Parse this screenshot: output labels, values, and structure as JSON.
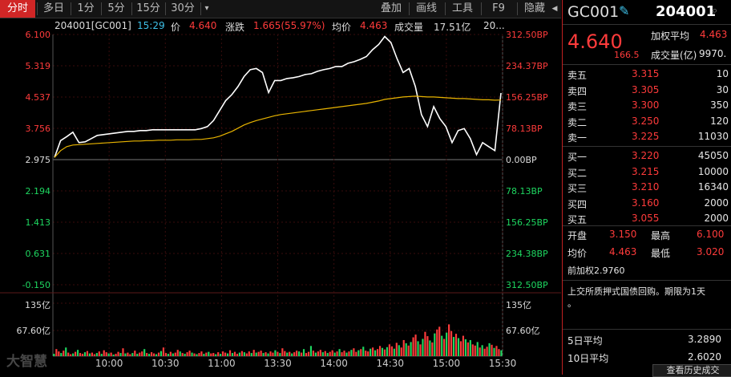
{
  "toolbar": {
    "tabs": [
      "分时",
      "多日",
      "1分",
      "5分",
      "15分",
      "30分"
    ],
    "more_glyph": "▾",
    "right_buttons": [
      "叠加",
      "画线",
      "工具",
      "F9",
      "隐藏"
    ]
  },
  "infobar": {
    "code": "204001[GC001]",
    "time": "15:29",
    "price_label": "价",
    "price": "4.640",
    "change_label": "涨跌",
    "change": "1.665(55.97%)",
    "avg_label": "均价",
    "avg": "4.463",
    "turnover_label": "成交量",
    "turnover": "17.51亿",
    "trailing": "20..."
  },
  "watermark": "大智慧",
  "chart_data": {
    "type": "line",
    "x_ticks": [
      "10:00",
      "10:30",
      "11:00",
      "13:30",
      "14:00",
      "14:30",
      "15:00",
      "15:30"
    ],
    "price_axis_left": [
      "6.100",
      "5.319",
      "4.537",
      "3.756",
      "2.975",
      "2.194",
      "1.413",
      "0.631",
      "-0.150"
    ],
    "price_axis_right": [
      "312.50BP",
      "234.37BP",
      "156.25BP",
      "78.13BP",
      "0.00BP",
      "78.13BP",
      "156.25BP",
      "234.38BP",
      "312.50BP"
    ],
    "volume_axis_left": [
      "135亿",
      "67.60亿"
    ],
    "volume_axis_right": [
      "135亿",
      "67.60亿"
    ],
    "prev_close": 2.976,
    "ylim": [
      -0.15,
      6.1
    ],
    "series": [
      {
        "values": [
          3.03,
          3.45,
          3.55,
          3.66,
          3.4,
          3.42,
          3.5,
          3.58,
          3.6,
          3.62,
          3.64,
          3.66,
          3.68,
          3.68,
          3.7,
          3.7,
          3.72,
          3.72,
          3.72,
          3.72,
          3.72,
          3.72,
          3.72,
          3.72,
          3.75,
          3.8,
          3.95,
          4.2,
          4.45,
          4.6,
          4.8,
          5.05,
          5.22,
          5.25,
          5.15,
          4.65,
          4.95,
          4.95,
          5.0,
          5.02,
          5.05,
          5.1,
          5.12,
          5.18,
          5.22,
          5.25,
          5.3,
          5.3,
          5.38,
          5.42,
          5.48,
          5.55,
          5.72,
          5.85,
          6.05,
          5.9,
          5.5,
          5.15,
          5.25,
          4.8,
          4.1,
          3.8,
          4.3,
          4.0,
          3.8,
          3.4,
          3.7,
          3.75,
          3.5,
          3.1,
          3.4,
          3.3,
          3.2,
          4.64
        ]
      },
      {
        "values": [
          3.03,
          3.2,
          3.3,
          3.34,
          3.35,
          3.36,
          3.37,
          3.38,
          3.39,
          3.4,
          3.41,
          3.42,
          3.43,
          3.44,
          3.44,
          3.45,
          3.45,
          3.46,
          3.46,
          3.46,
          3.47,
          3.47,
          3.47,
          3.48,
          3.48,
          3.5,
          3.52,
          3.56,
          3.62,
          3.68,
          3.76,
          3.84,
          3.9,
          3.95,
          3.99,
          4.03,
          4.07,
          4.1,
          4.12,
          4.14,
          4.16,
          4.18,
          4.2,
          4.22,
          4.24,
          4.26,
          4.28,
          4.3,
          4.32,
          4.34,
          4.36,
          4.38,
          4.41,
          4.44,
          4.48,
          4.5,
          4.52,
          4.54,
          4.55,
          4.56,
          4.55,
          4.54,
          4.54,
          4.53,
          4.52,
          4.51,
          4.5,
          4.5,
          4.49,
          4.48,
          4.47,
          4.47,
          4.46,
          4.463
        ]
      }
    ],
    "volume": [
      6,
      18,
      12,
      8,
      14,
      22,
      9,
      5,
      7,
      11,
      16,
      8,
      6,
      10,
      13,
      7,
      9,
      5,
      8,
      12,
      6,
      15,
      10,
      7,
      9,
      4,
      6,
      11,
      8,
      20,
      7,
      9,
      5,
      8,
      14,
      6,
      9,
      12,
      18,
      8,
      6,
      10,
      7,
      5,
      9,
      13,
      22,
      8,
      6,
      11,
      7,
      9,
      16,
      12,
      8,
      6,
      10,
      14,
      9,
      7,
      5,
      8,
      12,
      6,
      9,
      11,
      7,
      8,
      5,
      10,
      6,
      12,
      9,
      7,
      15,
      8,
      11,
      6,
      9,
      13,
      10,
      7,
      12,
      8,
      16,
      9,
      11,
      14,
      8,
      10,
      7,
      12,
      9,
      15,
      11,
      8,
      20,
      13,
      9,
      11,
      7,
      10,
      14,
      12,
      9,
      18,
      8,
      11,
      26,
      14,
      9,
      12,
      16,
      10,
      13,
      8,
      11,
      15,
      9,
      12,
      18,
      10,
      14,
      9,
      12,
      16,
      20,
      11,
      15,
      18,
      24,
      14,
      12,
      19,
      22,
      15,
      18,
      26,
      21,
      17,
      23,
      30,
      25,
      19,
      34,
      28,
      22,
      41,
      33,
      27,
      36,
      48,
      55,
      38,
      30,
      44,
      62,
      51,
      40,
      35,
      58,
      68,
      75,
      52,
      44,
      60,
      81,
      64,
      49,
      57,
      46,
      38,
      52,
      43,
      35,
      41,
      30,
      27,
      36,
      22,
      28,
      19,
      24,
      33,
      29,
      21,
      26,
      18,
      15
    ],
    "volume_max": 135
  },
  "right": {
    "code": "GC001",
    "number": "204001",
    "price": "4.640",
    "change": "166.5",
    "wavg_label": "加权平均",
    "wavg": "4.463",
    "vol_label": "成交量(亿)",
    "vol": "9970.",
    "asks": [
      {
        "label": "卖五",
        "price": "3.315",
        "qty": "10"
      },
      {
        "label": "卖四",
        "price": "3.305",
        "qty": "30"
      },
      {
        "label": "卖三",
        "price": "3.300",
        "qty": "350"
      },
      {
        "label": "卖二",
        "price": "3.250",
        "qty": "120"
      },
      {
        "label": "卖一",
        "price": "3.225",
        "qty": "11030"
      }
    ],
    "bids": [
      {
        "label": "买一",
        "price": "3.220",
        "qty": "45050"
      },
      {
        "label": "买二",
        "price": "3.215",
        "qty": "10000"
      },
      {
        "label": "买三",
        "price": "3.210",
        "qty": "16340"
      },
      {
        "label": "买四",
        "price": "3.160",
        "qty": "2000"
      },
      {
        "label": "买五",
        "price": "3.055",
        "qty": "2000"
      }
    ],
    "open_label": "开盘",
    "open": "3.150",
    "high_label": "最高",
    "high": "6.100",
    "avg_label": "均价",
    "avg": "4.463",
    "low_label": "最低",
    "low": "3.020",
    "prev_label": "前加权",
    "prev": "2.9760",
    "description": "上交所质押式国债回购。期限为1天",
    "description2": "。",
    "ma5_label": "5日平均",
    "ma5": "3.2890",
    "ma10_label": "10日平均",
    "ma10": "2.6020",
    "history_button": "查看历史成交"
  },
  "colors": {
    "up": "#ff3b3b",
    "down": "#1ed760",
    "price_line": "#ffffff",
    "avg_line": "#e8b400",
    "accent": "#d02626"
  }
}
